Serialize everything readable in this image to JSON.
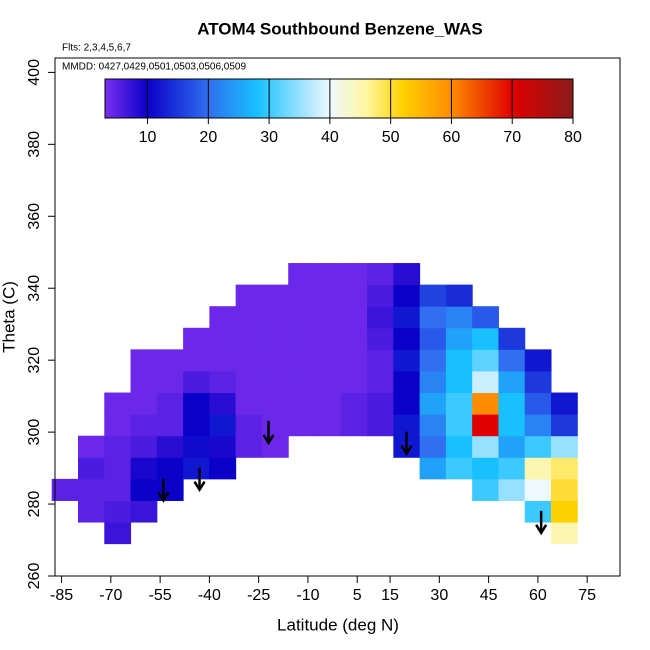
{
  "chart_data": {
    "type": "heatmap",
    "title": "ATOM4 Southbound Benzene_WAS",
    "annotations": [
      "Flts: 2,3,4,5,6,7",
      "MMDD: 0427,0429,0501,0503,0506,0509"
    ],
    "x_label": "Latitude (deg N)",
    "y_label": "Theta (C)",
    "xlim": [
      -87,
      85
    ],
    "xticks": [
      -85,
      -70,
      -55,
      -40,
      -25,
      -10,
      5,
      15,
      30,
      45,
      60,
      75
    ],
    "ylim": [
      260,
      404
    ],
    "yticks": [
      260,
      280,
      300,
      320,
      340,
      360,
      380,
      400
    ],
    "zlim": [
      3,
      80
    ],
    "zticks": [
      10,
      20,
      30,
      40,
      50,
      60,
      70,
      80
    ],
    "colorscale": [
      [
        3,
        "#7b2ff0"
      ],
      [
        10,
        "#0a00c8"
      ],
      [
        20,
        "#2f6ff0"
      ],
      [
        28,
        "#18c0ff"
      ],
      [
        40,
        "#eef8ff"
      ],
      [
        46,
        "#fff6a0"
      ],
      [
        52,
        "#ffd000"
      ],
      [
        60,
        "#ff8c00"
      ],
      [
        70,
        "#e00000"
      ],
      [
        80,
        "#8b1a1a"
      ]
    ],
    "x": [
      -84,
      -76,
      -68,
      -60,
      -52,
      -44,
      -36,
      -28,
      -20,
      -12,
      -4,
      4,
      12,
      20,
      28,
      36,
      44,
      52,
      60,
      68
    ],
    "y": [
      272,
      278,
      284,
      290,
      296,
      302,
      308,
      314,
      320,
      326,
      332,
      338,
      344
    ],
    "z": [
      [
        null,
        null,
        7,
        null,
        null,
        null,
        null,
        null,
        null,
        null,
        null,
        null,
        null,
        null,
        null,
        null,
        null,
        null,
        null,
        45
      ],
      [
        null,
        5,
        6,
        7,
        null,
        null,
        null,
        null,
        null,
        null,
        null,
        null,
        null,
        null,
        null,
        null,
        null,
        null,
        30,
        52
      ],
      [
        5,
        5,
        5,
        10,
        10,
        null,
        null,
        null,
        null,
        null,
        null,
        null,
        null,
        null,
        null,
        null,
        30,
        35,
        40,
        50
      ],
      [
        null,
        6,
        5,
        9,
        10,
        12,
        10,
        null,
        null,
        null,
        null,
        null,
        null,
        null,
        25,
        30,
        28,
        30,
        45,
        48
      ],
      [
        null,
        4,
        5,
        6,
        8,
        11,
        9,
        5,
        4,
        null,
        null,
        null,
        null,
        12,
        20,
        28,
        35,
        25,
        30,
        35
      ],
      [
        null,
        null,
        4,
        5,
        5,
        10,
        12,
        5,
        4,
        4,
        4,
        5,
        6,
        12,
        22,
        30,
        70,
        28,
        22,
        15
      ],
      [
        null,
        null,
        4,
        4,
        5,
        10,
        8,
        4,
        4,
        4,
        4,
        5,
        6,
        10,
        25,
        30,
        60,
        28,
        18,
        12
      ],
      [
        null,
        null,
        null,
        4,
        4,
        6,
        5,
        4,
        4,
        4,
        4,
        4,
        5,
        10,
        22,
        28,
        38,
        25,
        15,
        null
      ],
      [
        null,
        null,
        null,
        4,
        4,
        4,
        4,
        4,
        4,
        4,
        4,
        4,
        5,
        12,
        20,
        28,
        32,
        20,
        12,
        null
      ],
      [
        null,
        null,
        null,
        null,
        null,
        4,
        4,
        4,
        4,
        4,
        4,
        4,
        6,
        10,
        18,
        25,
        28,
        15,
        null,
        null
      ],
      [
        null,
        null,
        null,
        null,
        null,
        null,
        4,
        4,
        4,
        4,
        4,
        4,
        7,
        12,
        20,
        22,
        18,
        null,
        null,
        null
      ],
      [
        null,
        null,
        null,
        null,
        null,
        null,
        null,
        4,
        4,
        4,
        4,
        4,
        6,
        10,
        16,
        14,
        null,
        null,
        null,
        null
      ],
      [
        null,
        null,
        null,
        null,
        null,
        null,
        null,
        null,
        null,
        4,
        4,
        4,
        5,
        8,
        null,
        null,
        null,
        null,
        null,
        null
      ]
    ],
    "arrows": {
      "x": [
        -54,
        -43,
        -22,
        20,
        61
      ],
      "y": [
        281,
        284,
        297,
        294,
        272
      ]
    }
  }
}
